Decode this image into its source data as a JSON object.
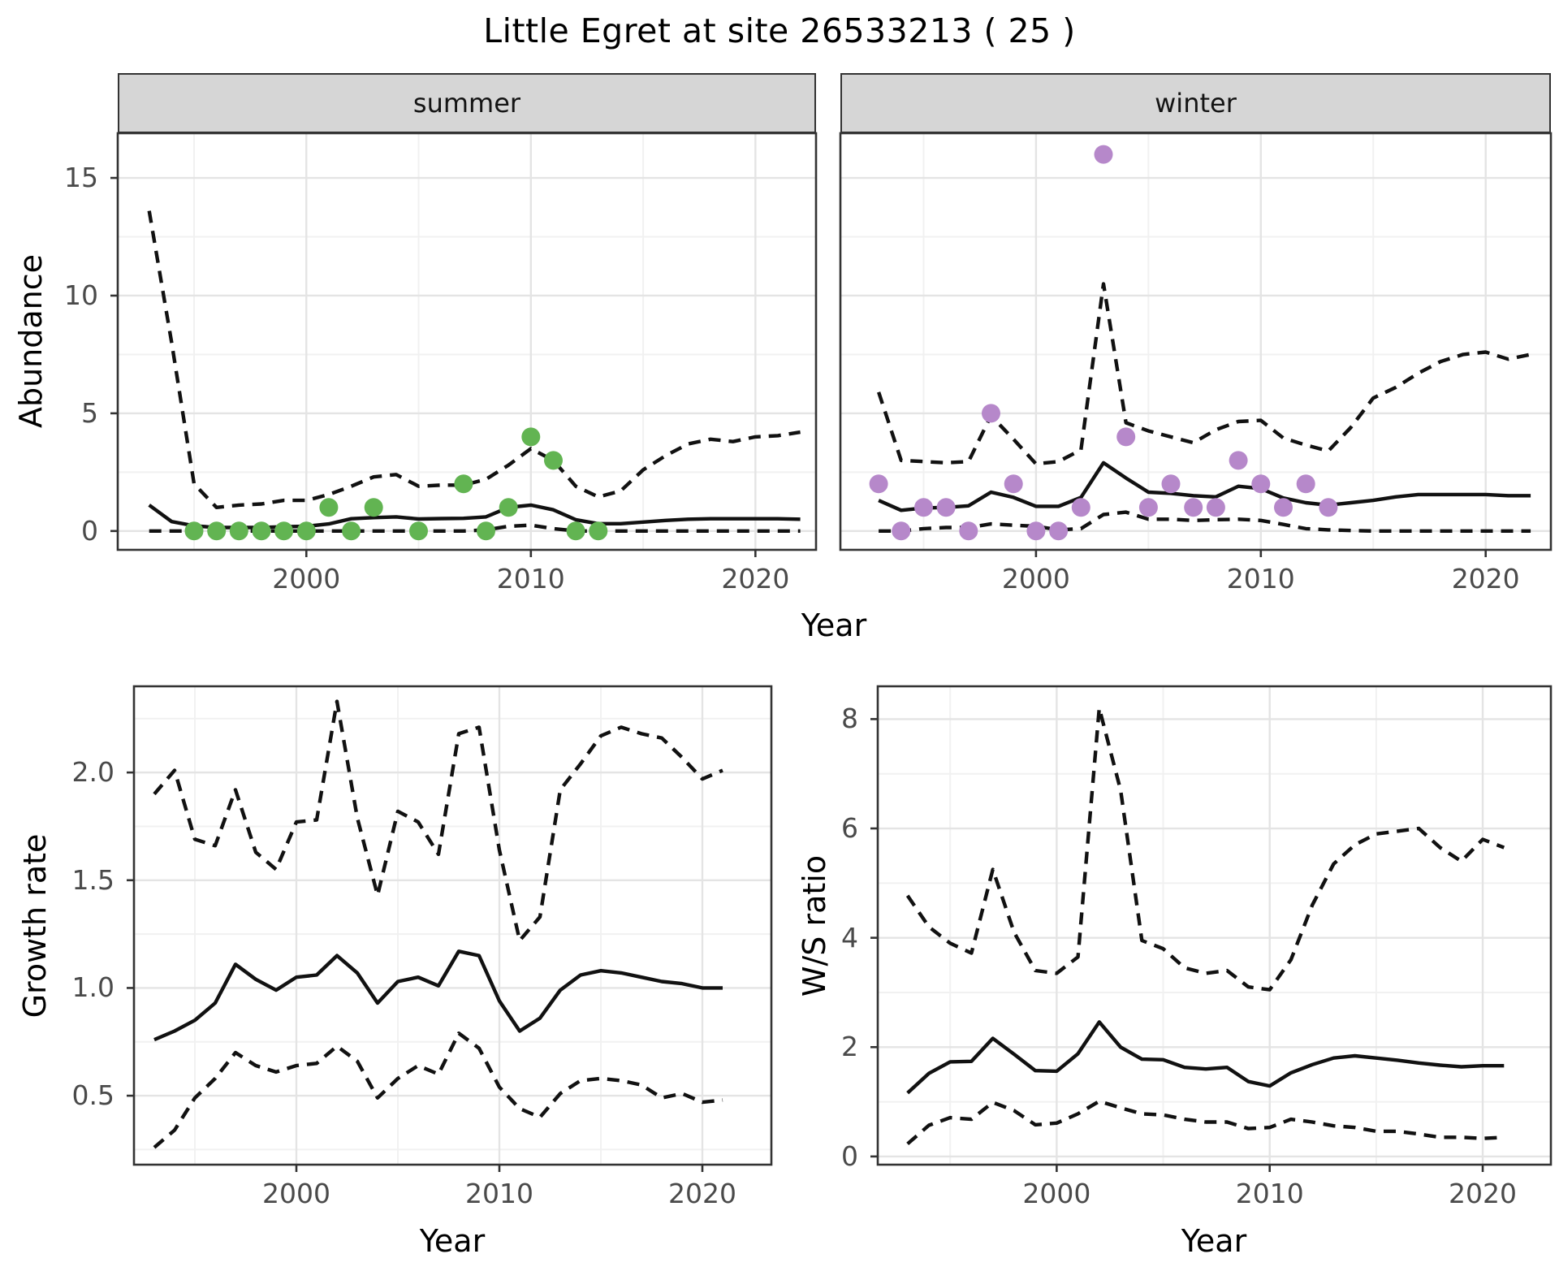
{
  "title": "Little Egret at site 26533213 ( 25 )",
  "colors": {
    "summer_points": "#62b452",
    "winter_points": "#b688ca",
    "line": "#111111",
    "tick_label": "#4a4a4a",
    "grid_major": "#e4e4e4",
    "grid_minor": "#f1f1f1",
    "panel_border": "#333333",
    "strip_bg": "#d6d6d6",
    "strip_text": "#141414",
    "panel_bg": "#ffffff"
  },
  "chart_data": [
    {
      "id": "summer-abundance",
      "type": "line",
      "facet_label": "summer",
      "xlabel": "Year",
      "ylabel": "Abundance",
      "xlim": [
        1991.6,
        2022.7
      ],
      "ylim": [
        -0.8,
        16.9
      ],
      "xticks": [
        {
          "v": 2000,
          "t": "2000"
        },
        {
          "v": 2010,
          "t": "2010"
        },
        {
          "v": 2020,
          "t": "2020"
        }
      ],
      "xminor": [
        1995,
        2005,
        2015
      ],
      "yticks": [
        {
          "v": 0,
          "t": "0"
        },
        {
          "v": 5,
          "t": "5"
        },
        {
          "v": 10,
          "t": "10"
        },
        {
          "v": 15,
          "t": "15"
        }
      ],
      "yminor": [
        2.5,
        7.5,
        12.5
      ],
      "x": [
        1993,
        1994,
        1995,
        1996,
        1997,
        1998,
        1999,
        2000,
        2001,
        2002,
        2003,
        2004,
        2005,
        2006,
        2007,
        2008,
        2009,
        2010,
        2011,
        2012,
        2013,
        2014,
        2015,
        2016,
        2017,
        2018,
        2019,
        2020,
        2021,
        2022
      ],
      "series": [
        {
          "name": "upper-ci",
          "dash": true,
          "values": [
            13.6,
            8.0,
            2.0,
            1.0,
            1.1,
            1.15,
            1.3,
            1.3,
            1.55,
            1.9,
            2.3,
            2.4,
            1.9,
            1.95,
            1.95,
            2.2,
            2.8,
            3.5,
            3.0,
            1.9,
            1.45,
            1.7,
            2.6,
            3.2,
            3.7,
            3.9,
            3.8,
            4.0,
            4.05,
            4.2
          ]
        },
        {
          "name": "median",
          "dash": false,
          "values": [
            1.1,
            0.4,
            0.22,
            0.15,
            0.15,
            0.15,
            0.18,
            0.2,
            0.3,
            0.52,
            0.57,
            0.6,
            0.51,
            0.53,
            0.54,
            0.6,
            1.0,
            1.1,
            0.9,
            0.48,
            0.31,
            0.31,
            0.38,
            0.45,
            0.5,
            0.52,
            0.52,
            0.52,
            0.52,
            0.5
          ]
        },
        {
          "name": "lower-ci",
          "dash": true,
          "values": [
            0,
            0,
            0,
            0,
            0,
            0,
            0,
            0,
            0,
            0,
            0,
            0,
            0,
            0,
            0,
            0.05,
            0.2,
            0.25,
            0.1,
            0,
            0,
            0,
            0,
            0,
            0,
            0,
            0,
            0,
            0,
            0
          ]
        }
      ],
      "points": {
        "name": "summer-observations",
        "color_key": "summer_points",
        "x": [
          1995,
          1996,
          1997,
          1998,
          1999,
          2000,
          2001,
          2002,
          2003,
          2005,
          2007,
          2008,
          2009,
          2010,
          2011,
          2012,
          2013
        ],
        "y": [
          0,
          0,
          0,
          0,
          0,
          0,
          1,
          0,
          1,
          0,
          2,
          0,
          1,
          4,
          3,
          0,
          0
        ]
      }
    },
    {
      "id": "winter-abundance",
      "type": "line",
      "facet_label": "winter",
      "xlabel": "Year",
      "ylabel": "Abundance",
      "xlim": [
        1991.3,
        2022.9
      ],
      "ylim": [
        -0.8,
        16.9
      ],
      "xticks": [
        {
          "v": 2000,
          "t": "2000"
        },
        {
          "v": 2010,
          "t": "2010"
        },
        {
          "v": 2020,
          "t": "2020"
        }
      ],
      "xminor": [
        1995,
        2005,
        2015
      ],
      "yticks": [],
      "yminor": [
        2.5,
        7.5,
        12.5
      ],
      "ygrid": [
        0,
        5,
        10,
        15
      ],
      "x": [
        1993,
        1994,
        1995,
        1996,
        1997,
        1998,
        1999,
        2000,
        2001,
        2002,
        2003,
        2004,
        2005,
        2006,
        2007,
        2008,
        2009,
        2010,
        2011,
        2012,
        2013,
        2014,
        2015,
        2016,
        2017,
        2018,
        2019,
        2020,
        2021,
        2022
      ],
      "series": [
        {
          "name": "upper-ci",
          "dash": true,
          "values": [
            5.9,
            3.0,
            2.95,
            2.9,
            2.95,
            4.9,
            3.9,
            2.85,
            2.95,
            3.45,
            10.5,
            4.6,
            4.25,
            4.0,
            3.75,
            4.3,
            4.65,
            4.7,
            3.95,
            3.65,
            3.4,
            4.4,
            5.65,
            6.1,
            6.7,
            7.2,
            7.5,
            7.6,
            7.3,
            7.5
          ]
        },
        {
          "name": "median",
          "dash": false,
          "values": [
            1.3,
            0.88,
            0.98,
            1.0,
            1.07,
            1.65,
            1.43,
            1.05,
            1.05,
            1.43,
            2.9,
            2.25,
            1.65,
            1.6,
            1.5,
            1.45,
            1.9,
            1.8,
            1.4,
            1.2,
            1.1,
            1.2,
            1.3,
            1.45,
            1.55,
            1.55,
            1.55,
            1.55,
            1.5,
            1.5
          ]
        },
        {
          "name": "lower-ci",
          "dash": true,
          "values": [
            0,
            0,
            0.1,
            0.15,
            0.15,
            0.3,
            0.25,
            0.2,
            0.05,
            0.1,
            0.7,
            0.8,
            0.5,
            0.5,
            0.45,
            0.48,
            0.5,
            0.45,
            0.28,
            0.1,
            0.05,
            0.02,
            0,
            0,
            0,
            0,
            0,
            0,
            0,
            0
          ]
        }
      ],
      "points": {
        "name": "winter-observations",
        "color_key": "winter_points",
        "x": [
          1993,
          1994,
          1995,
          1996,
          1997,
          1998,
          1999,
          2000,
          2001,
          2002,
          2003,
          2004,
          2005,
          2006,
          2007,
          2008,
          2009,
          2010,
          2011,
          2012,
          2013
        ],
        "y": [
          2,
          0,
          1,
          1,
          0,
          5,
          2,
          0,
          0,
          1,
          16,
          4,
          1,
          2,
          1,
          1,
          3,
          2,
          1,
          2,
          1
        ]
      }
    },
    {
      "id": "growth-rate",
      "type": "line",
      "facet_label": "",
      "xlabel": "Year",
      "ylabel": "Growth rate",
      "xlim": [
        1992.0,
        2023.4
      ],
      "ylim": [
        0.18,
        2.4
      ],
      "xticks": [
        {
          "v": 2000,
          "t": "2000"
        },
        {
          "v": 2010,
          "t": "2010"
        },
        {
          "v": 2020,
          "t": "2020"
        }
      ],
      "xminor": [
        1995,
        2005,
        2015
      ],
      "yticks": [
        {
          "v": 0.5,
          "t": "0.5"
        },
        {
          "v": 1.0,
          "t": "1.0"
        },
        {
          "v": 1.5,
          "t": "1.5"
        },
        {
          "v": 2.0,
          "t": "2.0"
        }
      ],
      "yminor": [
        0.25,
        0.75,
        1.25,
        1.75,
        2.25
      ],
      "x": [
        1993,
        1994,
        1995,
        1996,
        1997,
        1998,
        1999,
        2000,
        2001,
        2002,
        2003,
        2004,
        2005,
        2006,
        2007,
        2008,
        2009,
        2010,
        2011,
        2012,
        2013,
        2014,
        2015,
        2016,
        2017,
        2018,
        2019,
        2020,
        2021
      ],
      "series": [
        {
          "name": "upper-ci",
          "dash": true,
          "values": [
            1.9,
            2.01,
            1.69,
            1.66,
            1.92,
            1.63,
            1.55,
            1.77,
            1.78,
            2.33,
            1.79,
            1.43,
            1.82,
            1.77,
            1.62,
            2.18,
            2.21,
            1.64,
            1.22,
            1.33,
            1.92,
            2.04,
            2.17,
            2.21,
            2.18,
            2.16,
            2.07,
            1.97,
            2.01
          ]
        },
        {
          "name": "median",
          "dash": false,
          "values": [
            0.76,
            0.8,
            0.85,
            0.93,
            1.11,
            1.04,
            0.99,
            1.05,
            1.06,
            1.15,
            1.07,
            0.93,
            1.03,
            1.05,
            1.01,
            1.17,
            1.15,
            0.94,
            0.8,
            0.86,
            0.99,
            1.06,
            1.08,
            1.07,
            1.05,
            1.03,
            1.02,
            1.0,
            1.0
          ]
        },
        {
          "name": "lower-ci",
          "dash": true,
          "values": [
            0.26,
            0.34,
            0.49,
            0.58,
            0.7,
            0.64,
            0.61,
            0.64,
            0.65,
            0.73,
            0.66,
            0.49,
            0.58,
            0.64,
            0.6,
            0.79,
            0.72,
            0.54,
            0.44,
            0.4,
            0.51,
            0.57,
            0.58,
            0.57,
            0.55,
            0.49,
            0.51,
            0.47,
            0.48
          ]
        }
      ],
      "points": null
    },
    {
      "id": "ws-ratio",
      "type": "line",
      "facet_label": "",
      "xlabel": "Year",
      "ylabel": "W/S ratio",
      "xlim": [
        1991.6,
        2023.2
      ],
      "ylim": [
        -0.15,
        8.6
      ],
      "xticks": [
        {
          "v": 2000,
          "t": "2000"
        },
        {
          "v": 2010,
          "t": "2010"
        },
        {
          "v": 2020,
          "t": "2020"
        }
      ],
      "xminor": [
        1995,
        2005,
        2015
      ],
      "yticks": [
        {
          "v": 0,
          "t": "0"
        },
        {
          "v": 2,
          "t": "2"
        },
        {
          "v": 4,
          "t": "4"
        },
        {
          "v": 6,
          "t": "6"
        },
        {
          "v": 8,
          "t": "8"
        }
      ],
      "yminor": [
        1,
        3,
        5,
        7
      ],
      "x": [
        1993,
        1994,
        1995,
        1996,
        1997,
        1998,
        1999,
        2000,
        2001,
        2002,
        2003,
        2004,
        2005,
        2006,
        2007,
        2008,
        2009,
        2010,
        2011,
        2012,
        2013,
        2014,
        2015,
        2016,
        2017,
        2018,
        2019,
        2020,
        2021
      ],
      "series": [
        {
          "name": "upper-ci",
          "dash": true,
          "values": [
            4.77,
            4.2,
            3.9,
            3.72,
            5.25,
            4.1,
            3.4,
            3.35,
            3.65,
            8.2,
            6.7,
            3.95,
            3.8,
            3.45,
            3.35,
            3.4,
            3.1,
            3.05,
            3.6,
            4.6,
            5.35,
            5.7,
            5.9,
            5.95,
            6.0,
            5.65,
            5.4,
            5.8,
            5.65
          ]
        },
        {
          "name": "median",
          "dash": false,
          "values": [
            1.16,
            1.52,
            1.73,
            1.74,
            2.16,
            1.87,
            1.57,
            1.56,
            1.88,
            2.46,
            2.0,
            1.78,
            1.77,
            1.63,
            1.6,
            1.63,
            1.37,
            1.29,
            1.53,
            1.68,
            1.8,
            1.84,
            1.8,
            1.76,
            1.71,
            1.67,
            1.64,
            1.66,
            1.66
          ]
        },
        {
          "name": "lower-ci",
          "dash": true,
          "values": [
            0.23,
            0.57,
            0.71,
            0.68,
            0.99,
            0.84,
            0.58,
            0.61,
            0.78,
            1.01,
            0.89,
            0.78,
            0.76,
            0.68,
            0.63,
            0.63,
            0.51,
            0.53,
            0.68,
            0.63,
            0.56,
            0.53,
            0.46,
            0.46,
            0.41,
            0.35,
            0.35,
            0.33,
            0.35
          ]
        }
      ],
      "points": null
    }
  ]
}
